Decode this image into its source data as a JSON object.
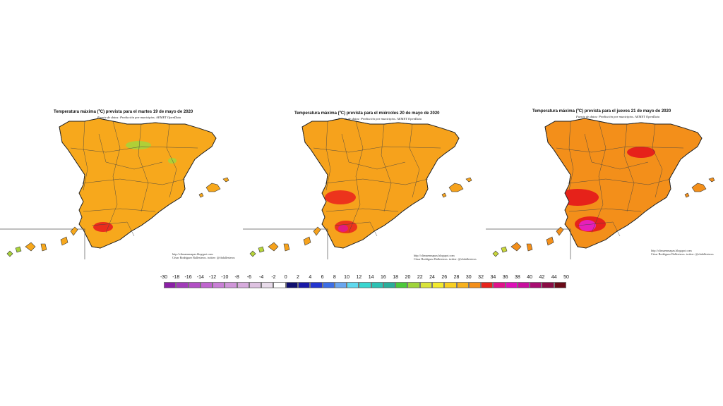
{
  "maps": [
    {
      "title": "Temperatura máxima (ºC) prevista para el martes 19 de mayo de 2020",
      "subtitle": "Fuente de datos: Predicción por municipios. AEMET OpenData",
      "credit_url": "http://climaenmapas.blogspot.com",
      "credit_name": "César Rodríguez Ballesteros. twitter: @cbdallesteros",
      "fill_color": "#f7a81c",
      "hot_color": "#e8231c",
      "extreme_color": "#d10f7e",
      "cool_color": "#a9d23a"
    },
    {
      "title": "Temperatura máxima (ºC) prevista para el miércoles 20 de mayo de 2020",
      "subtitle": "Fuente de datos: Predicción por municipios. AEMET OpenData",
      "credit_url": "http://climaenmapas.blogspot.com",
      "credit_name": "César Rodríguez Ballesteros. twitter: @cbdallesteros",
      "fill_color": "#f6a21c",
      "hot_color": "#ea2a1c",
      "extreme_color": "#e01a8a",
      "cool_color": "#b7d53a"
    },
    {
      "title": "Temperatura máxima (ºC) prevista para el jueves 21 de mayo de 2020",
      "subtitle": "Fuente de datos: Predicción por municipios. AEMET OpenData",
      "credit_url": "http://climaenmapas.blogspot.com",
      "credit_name": "César Rodríguez Ballesteros. twitter: @cbdallesteros",
      "fill_color": "#f38f1a",
      "hot_color": "#e5191a",
      "extreme_color": "#e61fc8",
      "cool_color": "#c9d63a"
    }
  ],
  "legend": {
    "labels": [
      "-30",
      "-18",
      "-16",
      "-14",
      "-12",
      "-10",
      "-8",
      "-6",
      "-4",
      "-2",
      "0",
      "2",
      "4",
      "6",
      "8",
      "10",
      "12",
      "14",
      "16",
      "18",
      "20",
      "22",
      "24",
      "26",
      "28",
      "30",
      "32",
      "34",
      "36",
      "38",
      "40",
      "42",
      "44",
      "50"
    ],
    "colors": [
      "#8b1fa6",
      "#a13cb9",
      "#b24fc5",
      "#c065cf",
      "#c97fd6",
      "#d096d9",
      "#d7abdd",
      "#dec2e1",
      "#e8dbea",
      "#ffffff",
      "#101070",
      "#1a1aa8",
      "#2335d0",
      "#3c6ee6",
      "#6aa6ef",
      "#5fd9ee",
      "#38d6d0",
      "#2bc1b3",
      "#2aae9b",
      "#4cc93a",
      "#9fd43b",
      "#d9e43a",
      "#f3ea2d",
      "#f8cf22",
      "#f7b11d",
      "#f48f1a",
      "#e8231c",
      "#e0128a",
      "#de10b9",
      "#c80f9e",
      "#a90d72",
      "#8b0c45",
      "#6b0b18"
    ]
  }
}
